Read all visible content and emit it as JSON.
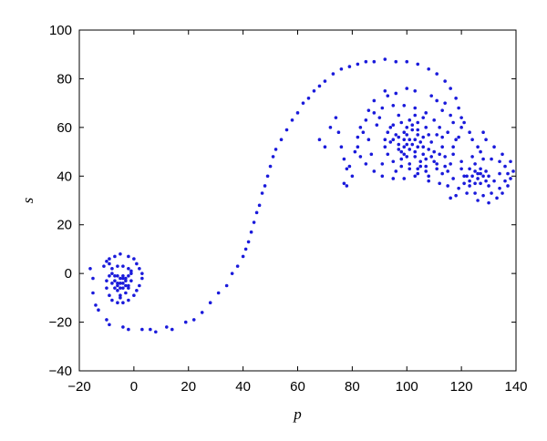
{
  "chart_data": {
    "type": "scatter",
    "xlabel": "p",
    "ylabel": "s",
    "xlim": [
      -20,
      140
    ],
    "ylim": [
      -40,
      100
    ],
    "x_ticks": [
      -20,
      0,
      20,
      40,
      60,
      80,
      100,
      120,
      140
    ],
    "y_ticks": [
      -40,
      -20,
      0,
      20,
      40,
      60,
      80,
      100
    ],
    "x_tick_labels": [
      "−20",
      "0",
      "20",
      "40",
      "60",
      "80",
      "100",
      "120",
      "140"
    ],
    "y_tick_labels": [
      "−40",
      "−20",
      "0",
      "20",
      "40",
      "60",
      "80",
      "100"
    ],
    "grid": false,
    "marker_color": "#1a1adb",
    "series": [
      {
        "points": [
          [
            -16,
            2
          ],
          [
            -15,
            -2
          ],
          [
            -15,
            -8
          ],
          [
            -14,
            -13
          ],
          [
            -13,
            -15
          ],
          [
            -11,
            3
          ],
          [
            -10,
            5
          ],
          [
            -9,
            6
          ],
          [
            -7,
            7
          ],
          [
            -5,
            8
          ],
          [
            -2,
            7
          ],
          [
            0,
            6
          ],
          [
            1,
            4
          ],
          [
            2,
            2
          ],
          [
            3,
            0
          ],
          [
            3,
            -2
          ],
          [
            2,
            -5
          ],
          [
            1,
            -7
          ],
          [
            0,
            -9
          ],
          [
            -2,
            -11
          ],
          [
            -4,
            -12
          ],
          [
            -6,
            -12
          ],
          [
            -8,
            -11
          ],
          [
            -9,
            -9
          ],
          [
            -10,
            -6
          ],
          [
            -10,
            -3
          ],
          [
            -9,
            -1
          ],
          [
            -8,
            2
          ],
          [
            -6,
            3
          ],
          [
            -4,
            3
          ],
          [
            -2,
            2
          ],
          [
            -1,
            0
          ],
          [
            -1,
            -3
          ],
          [
            -2,
            -5
          ],
          [
            -4,
            -6
          ],
          [
            -6,
            -5
          ],
          [
            -7,
            -3
          ],
          [
            -6,
            -1
          ],
          [
            -4,
            -1
          ],
          [
            -3,
            -3
          ],
          [
            -5,
            -4
          ],
          [
            -4,
            -4
          ],
          [
            -5,
            -2
          ],
          [
            -3,
            -5
          ],
          [
            -6,
            -7
          ],
          [
            -7,
            -6
          ],
          [
            -3,
            -8
          ],
          [
            -5,
            -9
          ],
          [
            -2,
            -1
          ],
          [
            -8,
            -4
          ],
          [
            -4,
            -2
          ],
          [
            -5,
            -6
          ],
          [
            -3,
            -2
          ],
          [
            -6,
            -4
          ],
          [
            -7,
            -1
          ],
          [
            -2,
            -6
          ],
          [
            -5,
            -10
          ],
          [
            -1,
            1
          ],
          [
            -8,
            0
          ],
          [
            -9,
            4
          ],
          [
            -10,
            -19
          ],
          [
            -9,
            -21
          ],
          [
            -4,
            -22
          ],
          [
            -2,
            -23
          ],
          [
            3,
            -23
          ],
          [
            6,
            -23
          ],
          [
            8,
            -24
          ],
          [
            12,
            -22
          ],
          [
            14,
            -23
          ],
          [
            19,
            -20
          ],
          [
            22,
            -19
          ],
          [
            25,
            -16
          ],
          [
            28,
            -12
          ],
          [
            31,
            -8
          ],
          [
            34,
            -5
          ],
          [
            36,
            0
          ],
          [
            38,
            3
          ],
          [
            40,
            7
          ],
          [
            41,
            10
          ],
          [
            42,
            13
          ],
          [
            43,
            17
          ],
          [
            44,
            21
          ],
          [
            45,
            25
          ],
          [
            46,
            28
          ],
          [
            47,
            33
          ],
          [
            48,
            36
          ],
          [
            49,
            40
          ],
          [
            50,
            44
          ],
          [
            51,
            48
          ],
          [
            52,
            51
          ],
          [
            54,
            55
          ],
          [
            56,
            59
          ],
          [
            58,
            63
          ],
          [
            60,
            66
          ],
          [
            62,
            70
          ],
          [
            64,
            72
          ],
          [
            66,
            75
          ],
          [
            68,
            77
          ],
          [
            70,
            79
          ],
          [
            73,
            82
          ],
          [
            76,
            84
          ],
          [
            79,
            85
          ],
          [
            82,
            86
          ],
          [
            85,
            87
          ],
          [
            88,
            87
          ],
          [
            92,
            88
          ],
          [
            96,
            87
          ],
          [
            100,
            87
          ],
          [
            104,
            86
          ],
          [
            108,
            84
          ],
          [
            111,
            82
          ],
          [
            114,
            79
          ],
          [
            116,
            76
          ],
          [
            118,
            72
          ],
          [
            119,
            68
          ],
          [
            120,
            64
          ],
          [
            120,
            60
          ],
          [
            119,
            56
          ],
          [
            117,
            52
          ],
          [
            114,
            48
          ],
          [
            111,
            45
          ],
          [
            107,
            42
          ],
          [
            103,
            40
          ],
          [
            99,
            39
          ],
          [
            95,
            39
          ],
          [
            91,
            40
          ],
          [
            88,
            42
          ],
          [
            85,
            45
          ],
          [
            83,
            48
          ],
          [
            82,
            52
          ],
          [
            82,
            56
          ],
          [
            83,
            60
          ],
          [
            85,
            63
          ],
          [
            88,
            66
          ],
          [
            91,
            68
          ],
          [
            95,
            69
          ],
          [
            99,
            69
          ],
          [
            103,
            68
          ],
          [
            107,
            66
          ],
          [
            110,
            63
          ],
          [
            112,
            60
          ],
          [
            113,
            56
          ],
          [
            113,
            52
          ],
          [
            112,
            49
          ],
          [
            110,
            46
          ],
          [
            107,
            44
          ],
          [
            104,
            43
          ],
          [
            101,
            43
          ],
          [
            98,
            44
          ],
          [
            95,
            46
          ],
          [
            93,
            49
          ],
          [
            92,
            52
          ],
          [
            92,
            55
          ],
          [
            93,
            58
          ],
          [
            95,
            61
          ],
          [
            98,
            62
          ],
          [
            101,
            63
          ],
          [
            104,
            62
          ],
          [
            107,
            60
          ],
          [
            108,
            57
          ],
          [
            109,
            54
          ],
          [
            108,
            51
          ],
          [
            106,
            49
          ],
          [
            103,
            48
          ],
          [
            100,
            48
          ],
          [
            98,
            50
          ],
          [
            97,
            53
          ],
          [
            97,
            56
          ],
          [
            99,
            58
          ],
          [
            102,
            59
          ],
          [
            104,
            57
          ],
          [
            105,
            54
          ],
          [
            104,
            52
          ],
          [
            101,
            51
          ],
          [
            100,
            53
          ],
          [
            101,
            55
          ],
          [
            103,
            55
          ],
          [
            102,
            53
          ],
          [
            99,
            55
          ],
          [
            96,
            57
          ],
          [
            94,
            54
          ],
          [
            98,
            47
          ],
          [
            105,
            46
          ],
          [
            110,
            50
          ],
          [
            111,
            57
          ],
          [
            106,
            64
          ],
          [
            97,
            65
          ],
          [
            89,
            61
          ],
          [
            86,
            55
          ],
          [
            87,
            49
          ],
          [
            91,
            45
          ],
          [
            96,
            42
          ],
          [
            108,
            40
          ],
          [
            114,
            44
          ],
          [
            117,
            49
          ],
          [
            118,
            55
          ],
          [
            117,
            62
          ],
          [
            113,
            67
          ],
          [
            92,
            75
          ],
          [
            90,
            64
          ],
          [
            115,
            58
          ],
          [
            116,
            45
          ],
          [
            121,
            40
          ],
          [
            123,
            36
          ],
          [
            125,
            33
          ],
          [
            128,
            32
          ],
          [
            131,
            33
          ],
          [
            134,
            35
          ],
          [
            136,
            38
          ],
          [
            137,
            41
          ],
          [
            136,
            44
          ],
          [
            134,
            46
          ],
          [
            131,
            47
          ],
          [
            128,
            47
          ],
          [
            125,
            45
          ],
          [
            123,
            43
          ],
          [
            122,
            40
          ],
          [
            123,
            38
          ],
          [
            125,
            37
          ],
          [
            127,
            37
          ],
          [
            129,
            38
          ],
          [
            130,
            40
          ],
          [
            129,
            42
          ],
          [
            127,
            43
          ],
          [
            125,
            42
          ],
          [
            124,
            40
          ],
          [
            126,
            39
          ],
          [
            128,
            40
          ],
          [
            127,
            41
          ],
          [
            126,
            41
          ],
          [
            121,
            37
          ],
          [
            120,
            43
          ],
          [
            119,
            35
          ],
          [
            122,
            33
          ],
          [
            126,
            30
          ],
          [
            130,
            29
          ],
          [
            133,
            31
          ],
          [
            135,
            33
          ],
          [
            137,
            36
          ],
          [
            138,
            39
          ],
          [
            139,
            42
          ],
          [
            138,
            46
          ],
          [
            135,
            49
          ],
          [
            132,
            52
          ],
          [
            129,
            55
          ],
          [
            128,
            58
          ],
          [
            127,
            50
          ],
          [
            124,
            48
          ],
          [
            120,
            46
          ],
          [
            118,
            32
          ],
          [
            116,
            31
          ],
          [
            115,
            36
          ],
          [
            117,
            39
          ],
          [
            132,
            38
          ],
          [
            134,
            41
          ],
          [
            130,
            36
          ],
          [
            75,
            58
          ],
          [
            76,
            52
          ],
          [
            77,
            47
          ],
          [
            78,
            43
          ],
          [
            80,
            40
          ],
          [
            78,
            36
          ],
          [
            68,
            55
          ],
          [
            70,
            52
          ],
          [
            72,
            60
          ],
          [
            74,
            64
          ],
          [
            77,
            37
          ],
          [
            79,
            44
          ],
          [
            81,
            50
          ],
          [
            84,
            58
          ],
          [
            86,
            67
          ],
          [
            88,
            71
          ],
          [
            93,
            73
          ],
          [
            96,
            74
          ],
          [
            100,
            76
          ],
          [
            103,
            75
          ],
          [
            109,
            73
          ],
          [
            111,
            71
          ],
          [
            114,
            70
          ],
          [
            116,
            65
          ],
          [
            121,
            62
          ],
          [
            123,
            58
          ],
          [
            124,
            55
          ],
          [
            126,
            52
          ],
          [
            100,
            60
          ],
          [
            102,
            61
          ],
          [
            104,
            59
          ],
          [
            99,
            52
          ],
          [
            97,
            51
          ],
          [
            95,
            55
          ],
          [
            94,
            60
          ],
          [
            103,
            65
          ],
          [
            106,
            56
          ],
          [
            109,
            48
          ],
          [
            111,
            43
          ],
          [
            113,
            41
          ],
          [
            115,
            42
          ],
          [
            112,
            37
          ],
          [
            108,
            38
          ],
          [
            104,
            41
          ],
          [
            101,
            45
          ],
          [
            99,
            49
          ],
          [
            100,
            57
          ],
          [
            103,
            50
          ],
          [
            106,
            52
          ],
          [
            107,
            47
          ],
          [
            105,
            44
          ]
        ]
      }
    ]
  }
}
